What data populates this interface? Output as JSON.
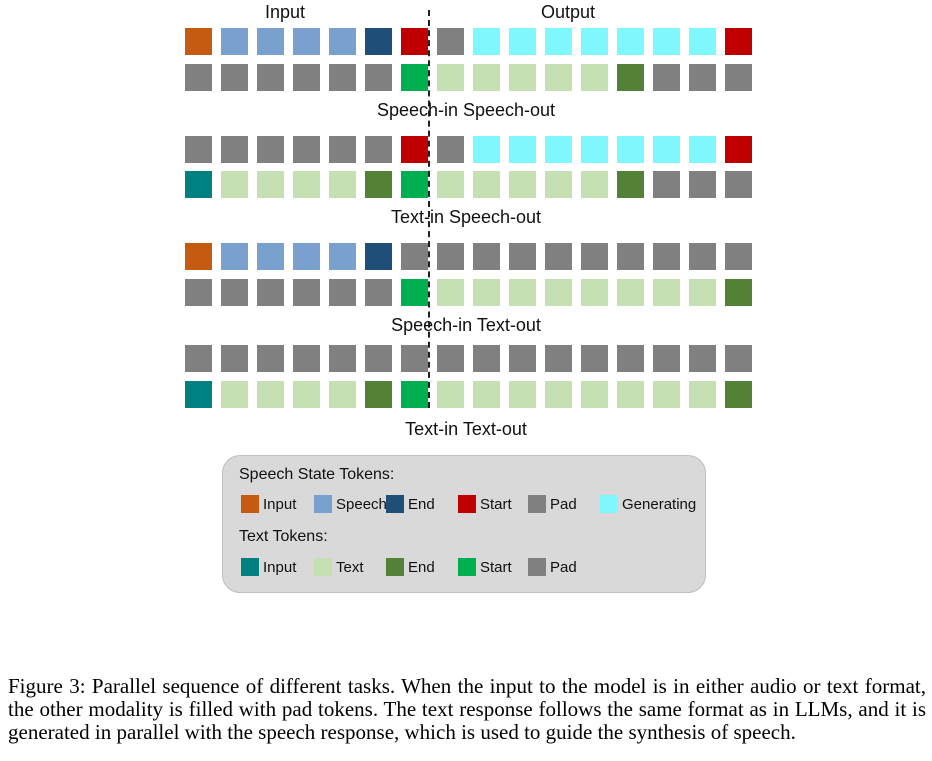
{
  "colors": {
    "speech_input": "#c55a11",
    "speech": "#7aa0cf",
    "speech_end": "#1f4e79",
    "speech_start": "#c00000",
    "pad": "#808080",
    "generating": "#7ff7ff",
    "text_input": "#008080",
    "text": "#c6e0b4",
    "text_end": "#538135",
    "text_start": "#00b050"
  },
  "header": {
    "input_label": "Input",
    "output_label": "Output"
  },
  "tasks": [
    {
      "title": "Speech-in Speech-out",
      "speech_row": [
        "speech_input",
        "speech",
        "speech",
        "speech",
        "speech",
        "speech_end",
        "speech_start",
        "pad",
        "generating",
        "generating",
        "generating",
        "generating",
        "generating",
        "generating",
        "generating",
        "speech_start"
      ],
      "text_row": [
        "pad",
        "pad",
        "pad",
        "pad",
        "pad",
        "pad",
        "text_start",
        "text",
        "text",
        "text",
        "text",
        "text",
        "text_end",
        "pad",
        "pad",
        "pad"
      ]
    },
    {
      "title": "Text-in Speech-out",
      "speech_row": [
        "pad",
        "pad",
        "pad",
        "pad",
        "pad",
        "pad",
        "speech_start",
        "pad",
        "generating",
        "generating",
        "generating",
        "generating",
        "generating",
        "generating",
        "generating",
        "speech_start"
      ],
      "text_row": [
        "text_input",
        "text",
        "text",
        "text",
        "text",
        "text_end",
        "text_start",
        "text",
        "text",
        "text",
        "text",
        "text",
        "text_end",
        "pad",
        "pad",
        "pad"
      ]
    },
    {
      "title": "Speech-in Text-out",
      "speech_row": [
        "speech_input",
        "speech",
        "speech",
        "speech",
        "speech",
        "speech_end",
        "pad",
        "pad",
        "pad",
        "pad",
        "pad",
        "pad",
        "pad",
        "pad",
        "pad",
        "pad"
      ],
      "text_row": [
        "pad",
        "pad",
        "pad",
        "pad",
        "pad",
        "pad",
        "text_start",
        "text",
        "text",
        "text",
        "text",
        "text",
        "text",
        "text",
        "text",
        "text_end"
      ]
    },
    {
      "title": "Text-in Text-out",
      "speech_row": [
        "pad",
        "pad",
        "pad",
        "pad",
        "pad",
        "pad",
        "pad",
        "pad",
        "pad",
        "pad",
        "pad",
        "pad",
        "pad",
        "pad",
        "pad",
        "pad"
      ],
      "text_row": [
        "text_input",
        "text",
        "text",
        "text",
        "text",
        "text_end",
        "text_start",
        "text",
        "text",
        "text",
        "text",
        "text",
        "text",
        "text",
        "text",
        "text_end"
      ]
    }
  ],
  "legend": {
    "speech_heading": "Speech State Tokens:",
    "speech_items": [
      {
        "label": "Input",
        "color_key": "speech_input"
      },
      {
        "label": "Speech",
        "color_key": "speech"
      },
      {
        "label": "End",
        "color_key": "speech_end"
      },
      {
        "label": "Start",
        "color_key": "speech_start"
      },
      {
        "label": "Pad",
        "color_key": "pad"
      },
      {
        "label": "Generating",
        "color_key": "generating"
      }
    ],
    "text_heading": "Text Tokens:",
    "text_items": [
      {
        "label": "Input",
        "color_key": "text_input"
      },
      {
        "label": "Text",
        "color_key": "text"
      },
      {
        "label": "End",
        "color_key": "text_end"
      },
      {
        "label": "Start",
        "color_key": "text_start"
      },
      {
        "label": "Pad",
        "color_key": "pad"
      }
    ]
  },
  "caption": "Figure 3: Parallel sequence of different tasks. When the input to the model is in either audio or text format, the other modality is filled with pad tokens. The text response follows the same format as in LLMs, and it is generated in parallel with the speech response, which is used to guide the synthesis of speech."
}
